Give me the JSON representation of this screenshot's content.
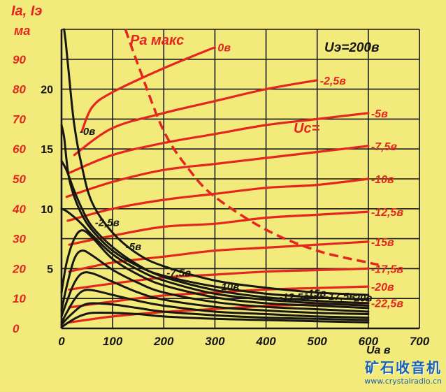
{
  "chart_data": {
    "type": "line",
    "title": "",
    "y_left_label_lines": [
      "Iа, Iэ",
      "ма"
    ],
    "condition_label": "Uэ=200в",
    "pmax_label": "Pа макс",
    "uc_label": "Uс=",
    "x_label": "Uа в",
    "x_ticks": [
      0,
      100,
      200,
      300,
      400,
      500,
      600,
      700
    ],
    "xlim": [
      0,
      700
    ],
    "y_left_ticks": [
      0,
      10,
      20,
      30,
      40,
      50,
      60,
      70,
      80,
      90
    ],
    "ylim_left": [
      0,
      100
    ],
    "y_inner_ticks": [
      5,
      10,
      15,
      20
    ],
    "ylim_inner": [
      0,
      25
    ],
    "pmax_curve": {
      "x": [
        125,
        150,
        200,
        250,
        300,
        400,
        500,
        600,
        620
      ],
      "y": [
        100,
        88,
        66,
        53,
        44,
        33,
        26,
        22,
        21.3
      ]
    },
    "anode_series": [
      {
        "name": "0в",
        "label": "0в",
        "x": [
          40,
          60,
          100,
          200,
          300
        ],
        "y": [
          66,
          74,
          79,
          87,
          94
        ]
      },
      {
        "name": "-2,5в",
        "label": "-2,5в",
        "x": [
          25,
          100,
          200,
          300,
          400,
          500
        ],
        "y": [
          58,
          67,
          72,
          76,
          80,
          83
        ]
      },
      {
        "name": "-5в",
        "label": "-5в",
        "x": [
          15,
          100,
          200,
          300,
          400,
          500,
          600
        ],
        "y": [
          52,
          58,
          62,
          65,
          68,
          70,
          72
        ]
      },
      {
        "name": "-7,5в",
        "label": "-7,5в",
        "x": [
          10,
          100,
          200,
          300,
          400,
          500,
          600
        ],
        "y": [
          44,
          49,
          53,
          55,
          57,
          59,
          61
        ]
      },
      {
        "name": "-10в",
        "label": "-10в",
        "x": [
          12,
          100,
          200,
          300,
          400,
          500,
          600
        ],
        "y": [
          36,
          40,
          43,
          45,
          47,
          48,
          50
        ]
      },
      {
        "name": "-12,5в",
        "label": "-12,5в",
        "x": [
          15,
          100,
          200,
          300,
          400,
          500,
          600
        ],
        "y": [
          28,
          31,
          34,
          35,
          37,
          38,
          39
        ]
      },
      {
        "name": "-15в",
        "label": "-15в",
        "x": [
          15,
          100,
          200,
          300,
          400,
          500,
          600
        ],
        "y": [
          19,
          22,
          24,
          26,
          27,
          28,
          29
        ]
      },
      {
        "name": "-17,5в",
        "label": "-17,5в",
        "x": [
          15,
          100,
          200,
          300,
          400,
          500,
          600
        ],
        "y": [
          13,
          15,
          17,
          18,
          19,
          19.5,
          20
        ]
      },
      {
        "name": "-20в",
        "label": "-20в",
        "x": [
          15,
          100,
          200,
          300,
          400,
          500,
          600
        ],
        "y": [
          7,
          9,
          11,
          12,
          13,
          13.5,
          14
        ]
      },
      {
        "name": "-22,5в",
        "label": "-22,5в",
        "x": [
          15,
          100,
          200,
          300,
          400,
          500,
          600
        ],
        "y": [
          2,
          4,
          5.5,
          6.5,
          7.5,
          8,
          8.5
        ]
      }
    ],
    "screen_series": [
      {
        "name": "0в",
        "label": "-0в",
        "x": [
          5,
          8,
          15,
          25,
          40,
          60,
          100,
          150,
          200,
          300,
          400,
          500,
          600
        ],
        "y": [
          25,
          24,
          21,
          17,
          13.5,
          10.5,
          8,
          6.2,
          5.2,
          4,
          3.4,
          3.0,
          2.8
        ]
      },
      {
        "name": "-2,5в",
        "label": "-2,5в",
        "x": [
          0,
          5,
          10,
          15,
          25,
          40,
          60,
          100,
          150,
          200,
          300,
          400,
          500,
          600
        ],
        "y": [
          17,
          16,
          14,
          12.5,
          11,
          9.5,
          8.2,
          6.5,
          5.2,
          4.4,
          3.5,
          2.9,
          2.6,
          2.4
        ]
      },
      {
        "name": "-5в",
        "label": "-5в",
        "x": [
          0,
          10,
          25,
          40,
          60,
          100,
          150,
          200,
          300,
          400,
          500,
          600
        ],
        "y": [
          14,
          13.2,
          11.5,
          10,
          8.5,
          6.8,
          5.3,
          4.3,
          3.2,
          2.6,
          2.3,
          2.1
        ]
      },
      {
        "name": "-7,5в",
        "label": "-7,5в",
        "x": [
          0,
          10,
          25,
          40,
          60,
          100,
          150,
          200,
          300,
          400,
          500,
          600
        ],
        "y": [
          10,
          9.8,
          9.3,
          8.7,
          7.8,
          6.2,
          4.9,
          4.0,
          2.9,
          2.4,
          2.1,
          1.9
        ]
      },
      {
        "name": "-10в",
        "label": "-10в",
        "x": [
          0,
          10,
          25,
          40,
          60,
          100,
          150,
          200,
          300,
          400,
          500,
          600
        ],
        "y": [
          3,
          5.5,
          7.5,
          8.2,
          7.6,
          5.8,
          4.5,
          3.6,
          2.6,
          2.1,
          1.9,
          1.7
        ]
      },
      {
        "name": "-12,5в",
        "label": "-12,5в",
        "x": [
          0,
          10,
          25,
          40,
          60,
          100,
          150,
          200,
          300,
          400,
          500,
          600
        ],
        "y": [
          1.5,
          3.5,
          5.8,
          6.5,
          6.1,
          4.9,
          3.8,
          3.0,
          2.2,
          1.8,
          1.6,
          1.4
        ]
      },
      {
        "name": "-15в",
        "label": "-15в",
        "x": [
          0,
          10,
          25,
          40,
          60,
          100,
          150,
          200,
          300,
          400,
          500,
          600
        ],
        "y": [
          1.0,
          2.2,
          3.8,
          4.6,
          4.6,
          3.9,
          3.0,
          2.4,
          1.8,
          1.5,
          1.3,
          1.2
        ]
      },
      {
        "name": "-17,5в",
        "label": "-17,5в",
        "x": [
          0,
          10,
          25,
          40,
          60,
          100,
          150,
          200,
          300,
          400,
          500,
          600
        ],
        "y": [
          0.5,
          1.3,
          2.4,
          3.1,
          3.2,
          2.8,
          2.3,
          1.9,
          1.4,
          1.2,
          1.0,
          0.9
        ]
      },
      {
        "name": "-20в",
        "label": "-20в",
        "x": [
          0,
          10,
          25,
          40,
          60,
          100,
          150,
          200,
          300,
          400,
          500,
          600
        ],
        "y": [
          0.3,
          0.8,
          1.4,
          1.9,
          2.1,
          2.0,
          1.7,
          1.4,
          1.1,
          0.9,
          0.8,
          0.7
        ]
      },
      {
        "name": "-22,5в",
        "label": "",
        "x": [
          0,
          10,
          25,
          40,
          60,
          100,
          150,
          200,
          300,
          400,
          500,
          600
        ],
        "y": [
          0.1,
          0.4,
          0.8,
          1.1,
          1.3,
          1.3,
          1.2,
          1.0,
          0.8,
          0.7,
          0.6,
          0.5
        ]
      }
    ],
    "anode_labels_vert": [
      "0в",
      "-2,5в",
      "-5в",
      "-7,5в",
      "-10в",
      "-12,5в",
      "-15в",
      "-17,5в",
      "-20в",
      "-22,5в"
    ],
    "screen_labels": [
      "-0в",
      "-2,5в",
      "-5в",
      "-7,5в",
      "-10в",
      "-12,5в",
      "-15в",
      "-17,5в",
      "-20в"
    ],
    "colors": {
      "red": "#e4261e",
      "black": "#161612",
      "background": "#f3ea7c",
      "watermark": "#1b63b3"
    }
  },
  "watermark": {
    "title": "矿石收音机",
    "url": "www.crystalradio.cn"
  }
}
